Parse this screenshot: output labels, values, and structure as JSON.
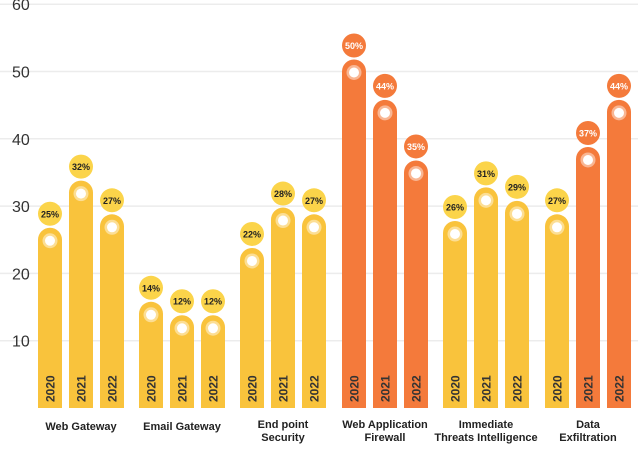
{
  "chart_data": {
    "type": "bar",
    "ylim": [
      0,
      60
    ],
    "yticks": [
      10,
      20,
      30,
      40,
      50,
      60
    ],
    "grid": true,
    "series_years": [
      "2020",
      "2021",
      "2022"
    ],
    "groups": [
      {
        "category": "Web Gateway",
        "values": [
          25,
          32,
          27
        ],
        "labels": [
          "25%",
          "32%",
          "27%"
        ],
        "colors": [
          "#F9C33C",
          "#F9C33C",
          "#F9C33C"
        ]
      },
      {
        "category": "Email Gateway",
        "values": [
          14,
          12,
          12
        ],
        "labels": [
          "14%",
          "12%",
          "12%"
        ],
        "colors": [
          "#F9C33C",
          "#F9C33C",
          "#F9C33C"
        ]
      },
      {
        "category": "End point Security",
        "values": [
          22,
          28,
          27
        ],
        "labels": [
          "22%",
          "28%",
          "27%"
        ],
        "colors": [
          "#F9C33C",
          "#F9C33C",
          "#F9C33C"
        ]
      },
      {
        "category": "Web Application Firewall",
        "values": [
          50,
          44,
          35
        ],
        "labels": [
          "50%",
          "44%",
          "35%"
        ],
        "colors": [
          "#F47A3B",
          "#F47A3B",
          "#F47A3B"
        ]
      },
      {
        "category": "Immediate Threats Intelligence",
        "values": [
          26,
          31,
          29
        ],
        "labels": [
          "26%",
          "31%",
          "29%"
        ],
        "colors": [
          "#F9C33C",
          "#F9C33C",
          "#F9C33C"
        ]
      },
      {
        "category": "Data Exfiltration",
        "values": [
          27,
          37,
          44
        ],
        "labels": [
          "27%",
          "37%",
          "44%"
        ],
        "colors": [
          "#F9C33C",
          "#F47A3B",
          "#F47A3B"
        ]
      }
    ],
    "colors": {
      "yellow": "#F9C33C",
      "orange": "#F47A3B",
      "badge_yellow": "#FBD44A",
      "badge_orange": "#F47A3B"
    }
  }
}
